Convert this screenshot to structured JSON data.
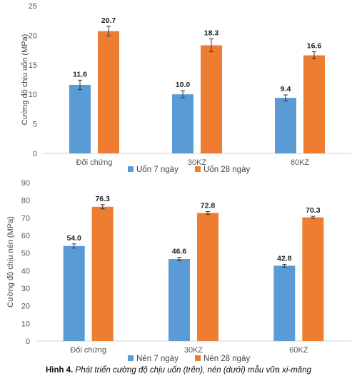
{
  "chart_data": [
    {
      "type": "bar",
      "categories": [
        "Đối chứng",
        "30KZ",
        "60KZ"
      ],
      "series": [
        {
          "name": "Uốn 7 ngày",
          "values": [
            11.6,
            10.0,
            9.4
          ],
          "color": "#5b9bd5"
        },
        {
          "name": "Uốn 28 ngày",
          "values": [
            20.7,
            18.3,
            16.6
          ],
          "color": "#ed7d31"
        }
      ],
      "value_labels": [
        [
          "11.6",
          "10.0",
          "9.4"
        ],
        [
          "20.7",
          "18.3",
          "16.6"
        ]
      ],
      "error_bars": [
        [
          0.8,
          0.6,
          0.5
        ],
        [
          0.8,
          1.1,
          0.6
        ]
      ],
      "ylabel": "Cường độ chịu uốn (MPa)",
      "ylim": [
        0,
        25
      ],
      "yticks": [
        0,
        5,
        10,
        15,
        20,
        25
      ],
      "grid": false,
      "legend": "bottom"
    },
    {
      "type": "bar",
      "categories": [
        "Đối chứng",
        "30KZ",
        "60KZ"
      ],
      "series": [
        {
          "name": "Nén 7 ngày",
          "values": [
            54.0,
            46.6,
            42.8
          ],
          "color": "#5b9bd5"
        },
        {
          "name": "Nén 28 ngày",
          "values": [
            76.3,
            72.8,
            70.3
          ],
          "color": "#ed7d31"
        }
      ],
      "value_labels": [
        [
          "54.0",
          "46.6",
          "42.8"
        ],
        [
          "76.3",
          "72.8",
          "70.3"
        ]
      ],
      "error_bars": [
        [
          1.2,
          1.0,
          0.8
        ],
        [
          1.2,
          0.8,
          0.6
        ]
      ],
      "ylabel": "Cường độ chịu nén (MPa)",
      "ylim": [
        0,
        90
      ],
      "yticks": [
        0,
        10,
        20,
        30,
        40,
        50,
        60,
        70,
        80,
        90
      ],
      "grid": false,
      "legend": "bottom"
    }
  ],
  "caption": {
    "label": "Hình 4.",
    "text": "Phát triển cường độ chịu uốn (trên), nén (dưới) mẫu vữa xi-măng"
  }
}
